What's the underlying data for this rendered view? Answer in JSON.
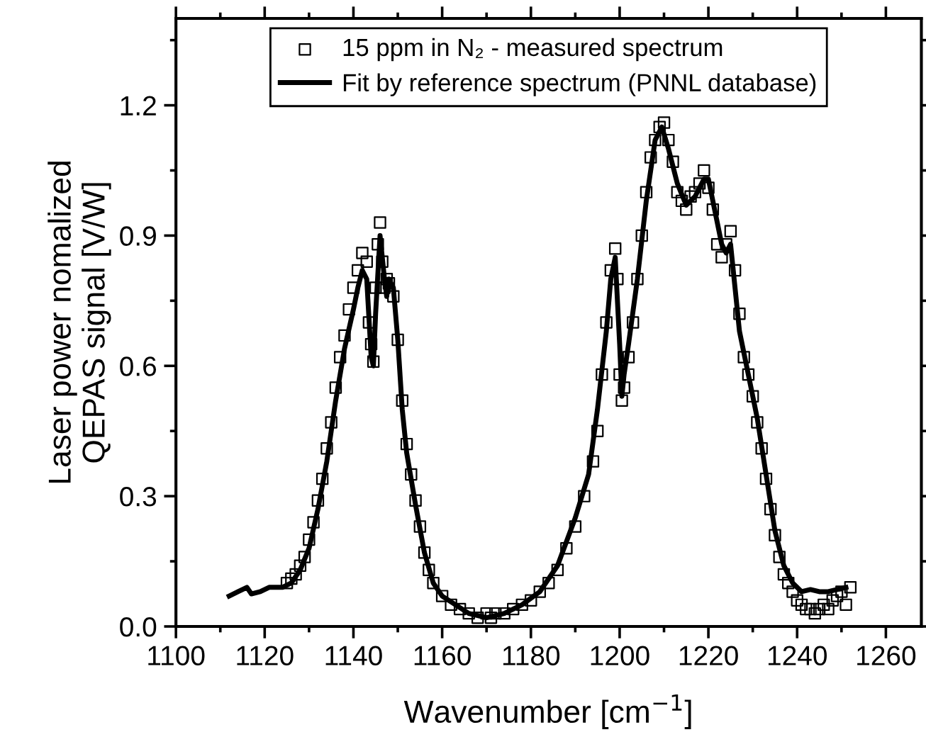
{
  "chart_data": {
    "type": "line",
    "xlabel": "Wavenumber [cm$^{−1}$]",
    "ylabel": "Laser power nomalized\nQEPAS signal [V/W]",
    "xlim": [
      1100,
      1268
    ],
    "xticks": [
      1100,
      1120,
      1140,
      1160,
      1180,
      1200,
      1220,
      1240,
      1260
    ],
    "ylim": [
      0,
      1.4
    ],
    "yticks": [
      {
        "value": 0,
        "label": "0.0"
      },
      0.3,
      0.6,
      0.9,
      1.2
    ],
    "grid": false,
    "legend": "top",
    "series": [
      {
        "name": "15 ppm in N₂ - measured spectrum",
        "type": "scatter",
        "marker": "square",
        "color": "#000000",
        "x": [
          1125,
          1126,
          1127,
          1128,
          1129,
          1130,
          1131,
          1132,
          1133,
          1134,
          1135,
          1136,
          1137,
          1138,
          1139,
          1140,
          1141,
          1142,
          1143,
          1143.5,
          1144,
          1144.5,
          1145,
          1145.5,
          1146,
          1146.5,
          1147,
          1147.5,
          1148,
          1149,
          1150,
          1151,
          1152,
          1153,
          1154,
          1155,
          1156,
          1157,
          1158,
          1160,
          1162,
          1164,
          1166,
          1168,
          1170,
          1171,
          1172,
          1174,
          1176,
          1178,
          1180,
          1182,
          1184,
          1186,
          1188,
          1190,
          1192,
          1194,
          1195,
          1196,
          1197,
          1198,
          1199,
          1199.5,
          1200,
          1200.5,
          1201,
          1202,
          1203,
          1204,
          1205,
          1206,
          1207,
          1208,
          1209,
          1210,
          1211,
          1212,
          1213,
          1214,
          1215,
          1216,
          1217,
          1218,
          1219,
          1220,
          1221,
          1222,
          1223,
          1224,
          1225,
          1226,
          1227,
          1228,
          1229,
          1230,
          1231,
          1232,
          1233,
          1234,
          1235,
          1236,
          1237,
          1238,
          1239,
          1240,
          1241,
          1242,
          1243,
          1244,
          1245,
          1246,
          1247,
          1248,
          1249,
          1250,
          1251,
          1252
        ],
        "values": [
          0.1,
          0.11,
          0.12,
          0.14,
          0.16,
          0.2,
          0.24,
          0.29,
          0.34,
          0.41,
          0.47,
          0.55,
          0.62,
          0.67,
          0.73,
          0.78,
          0.82,
          0.86,
          0.84,
          0.7,
          0.65,
          0.61,
          0.78,
          0.88,
          0.93,
          0.84,
          0.78,
          0.8,
          0.79,
          0.76,
          0.66,
          0.52,
          0.42,
          0.35,
          0.29,
          0.23,
          0.17,
          0.13,
          0.1,
          0.07,
          0.05,
          0.04,
          0.03,
          0.02,
          0.03,
          0.02,
          0.03,
          0.03,
          0.04,
          0.05,
          0.06,
          0.08,
          0.1,
          0.13,
          0.18,
          0.23,
          0.3,
          0.38,
          0.45,
          0.58,
          0.7,
          0.82,
          0.87,
          0.8,
          0.58,
          0.52,
          0.55,
          0.62,
          0.7,
          0.8,
          0.9,
          1.0,
          1.08,
          1.12,
          1.15,
          1.16,
          1.12,
          1.07,
          1.0,
          0.98,
          0.96,
          0.99,
          1.0,
          1.02,
          1.05,
          1.01,
          0.96,
          0.88,
          0.85,
          0.88,
          0.91,
          0.82,
          0.72,
          0.62,
          0.58,
          0.53,
          0.47,
          0.41,
          0.34,
          0.27,
          0.21,
          0.16,
          0.12,
          0.1,
          0.08,
          0.06,
          0.05,
          0.04,
          0.04,
          0.03,
          0.04,
          0.05,
          0.04,
          0.06,
          0.07,
          0.08,
          0.05,
          0.09
        ]
      },
      {
        "name": "Fit by reference spectrum (PNNL database)",
        "color": "#000000",
        "x": [
          1112,
          1114,
          1116,
          1117,
          1119,
          1121,
          1124,
          1126,
          1128,
          1130,
          1132,
          1134,
          1136,
          1138,
          1140,
          1141,
          1142,
          1143,
          1144,
          1144.5,
          1145,
          1146,
          1147,
          1147.5,
          1148,
          1149,
          1150,
          1151,
          1152,
          1154,
          1156,
          1158,
          1160,
          1163,
          1166,
          1170,
          1174,
          1178,
          1182,
          1186,
          1190,
          1193,
          1195,
          1197,
          1198,
          1199,
          1200,
          1200.5,
          1201,
          1202,
          1204,
          1206,
          1208,
          1209.5,
          1211,
          1213,
          1215,
          1217,
          1219,
          1220,
          1222,
          1223,
          1224,
          1225,
          1226,
          1227,
          1229,
          1231,
          1233,
          1235,
          1237,
          1239,
          1241,
          1243,
          1245,
          1247,
          1249,
          1251
        ],
        "values": [
          0.07,
          0.08,
          0.09,
          0.075,
          0.08,
          0.09,
          0.09,
          0.1,
          0.13,
          0.18,
          0.27,
          0.38,
          0.52,
          0.64,
          0.73,
          0.78,
          0.82,
          0.8,
          0.62,
          0.6,
          0.72,
          0.9,
          0.8,
          0.76,
          0.8,
          0.78,
          0.66,
          0.5,
          0.4,
          0.28,
          0.17,
          0.1,
          0.07,
          0.05,
          0.03,
          0.02,
          0.03,
          0.05,
          0.08,
          0.14,
          0.25,
          0.35,
          0.5,
          0.68,
          0.8,
          0.85,
          0.65,
          0.53,
          0.58,
          0.65,
          0.8,
          0.98,
          1.12,
          1.15,
          1.1,
          1.02,
          0.97,
          0.99,
          1.03,
          1.03,
          0.93,
          0.88,
          0.86,
          0.88,
          0.78,
          0.68,
          0.58,
          0.48,
          0.35,
          0.22,
          0.14,
          0.1,
          0.08,
          0.085,
          0.08,
          0.08,
          0.085,
          0.09
        ]
      }
    ]
  }
}
